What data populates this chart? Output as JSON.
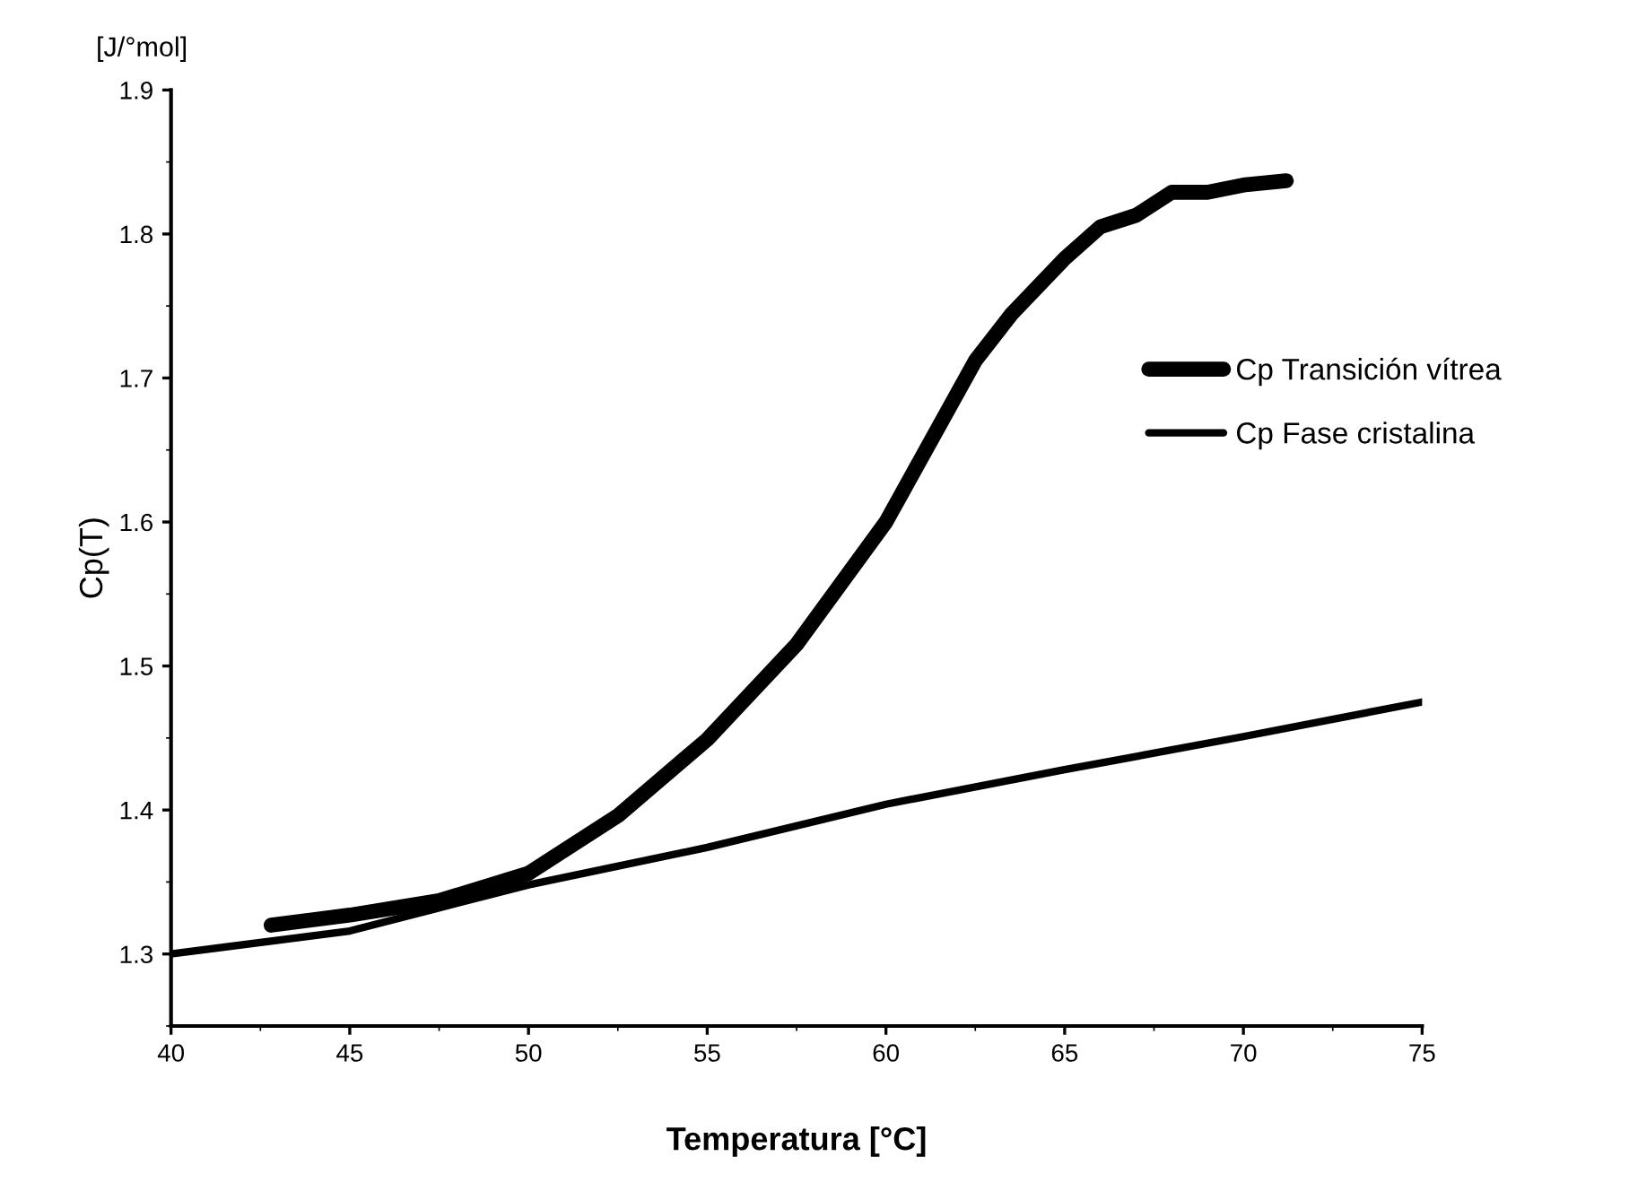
{
  "chart_data": {
    "type": "line",
    "xlabel": "Temperatura [°C]",
    "ylabel": "Cp(T)",
    "annotations": [
      "[J/°mol]"
    ],
    "xlim": [
      40,
      75
    ],
    "xticks": [
      40,
      45,
      50,
      55,
      60,
      65,
      70,
      75
    ],
    "ylim": [
      1.25,
      1.9
    ],
    "yticks": [
      1.3,
      1.4,
      1.5,
      1.6,
      1.7,
      1.8,
      1.9
    ],
    "grid": false,
    "legend": "right",
    "marker": "none",
    "line_style": "solid",
    "series": [
      {
        "name": "Cp Transición vítrea",
        "color": "#000000",
        "x": [
          42.8,
          45,
          47.5,
          50,
          52.5,
          55,
          57.5,
          60,
          62.5,
          63.5,
          65,
          66,
          67,
          68,
          69,
          70,
          71.2
        ],
        "values": [
          1.32,
          1.327,
          1.337,
          1.356,
          1.396,
          1.449,
          1.515,
          1.6,
          1.712,
          1.744,
          1.783,
          1.805,
          1.813,
          1.829,
          1.829,
          1.834,
          1.837
        ]
      },
      {
        "name": "Cp Fase cristalina",
        "color": "#000000",
        "x": [
          40,
          45,
          50,
          55,
          60,
          65,
          70,
          75
        ],
        "values": [
          1.3,
          1.316,
          1.348,
          1.374,
          1.404,
          1.428,
          1.451,
          1.475
        ]
      }
    ]
  }
}
